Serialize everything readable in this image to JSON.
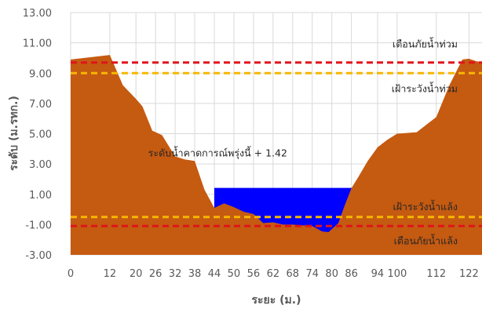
{
  "chart_data": {
    "type": "area",
    "xlabel": "ระยะ (ม.)",
    "ylabel": "ระดับ (ม.รทก.)",
    "xlim": [
      0,
      126
    ],
    "ylim": [
      -3,
      13
    ],
    "x_ticks": [
      0,
      12,
      20,
      26,
      32,
      38,
      44,
      50,
      56,
      62,
      68,
      74,
      80,
      86,
      94,
      100,
      112,
      122
    ],
    "x_tick_labels": [
      "0",
      "12",
      "20",
      "26",
      "32",
      "38",
      "44",
      "50",
      "56",
      "62",
      "68",
      "74",
      "80",
      "86",
      "94",
      "100",
      "112",
      "122"
    ],
    "y_ticks": [
      -3,
      -1,
      1,
      3,
      5,
      7,
      9,
      11,
      13
    ],
    "y_tick_labels": [
      "-3.00",
      "-1.00",
      "1.00",
      "3.00",
      "5.00",
      "7.00",
      "9.00",
      "11.00",
      "13.00"
    ],
    "grid": true,
    "series": [
      {
        "kind": "ground",
        "color": "#C55A11",
        "x": [
          0,
          12,
          16,
          20,
          22,
          25,
          28,
          32,
          35,
          38,
          41,
          44,
          47,
          50,
          53,
          56,
          59,
          62,
          65,
          68,
          71,
          74,
          77,
          79,
          80,
          82,
          84,
          86,
          88,
          91,
          94,
          97,
          100,
          106,
          112,
          116,
          120,
          122,
          124,
          126
        ],
        "y": [
          9.9,
          10.2,
          8.2,
          7.3,
          6.8,
          5.2,
          4.9,
          3.5,
          3.3,
          3.2,
          1.3,
          0.1,
          0.4,
          0.15,
          -0.15,
          -0.3,
          -0.9,
          -0.85,
          -1.0,
          -1.0,
          -1.05,
          -1.1,
          -1.45,
          -1.5,
          -1.3,
          -0.9,
          0.3,
          1.4,
          2.1,
          3.2,
          4.1,
          4.6,
          5.0,
          5.1,
          6.1,
          8.2,
          9.9,
          9.95,
          9.8,
          9.7
        ]
      },
      {
        "kind": "water",
        "color": "#0000FF",
        "level": 1.42,
        "x_start": 44,
        "x_end": 86.5
      }
    ],
    "reference_lines": [
      {
        "label": "เตือนภัยน้ำท่วม",
        "value": 9.7,
        "color": "#E0141C",
        "label_y": 10.9
      },
      {
        "label": "เฝ้าระวังน้ำท่วม",
        "value": 9.0,
        "color": "#F5B700",
        "label_y": 7.95
      },
      {
        "label": "เฝ้าระวังน้ำแล้ง",
        "value": -0.5,
        "color": "#F5B700",
        "label_y": 0.15
      },
      {
        "label": "เตือนภัยน้ำแล้ง",
        "value": -1.1,
        "color": "#E0141C",
        "label_y": -2.1
      }
    ],
    "annotation": {
      "text": "ระดับน้ำคาดการณ์พรุ่งนี้ + 1.42",
      "x": 46,
      "y": 3.7
    }
  }
}
